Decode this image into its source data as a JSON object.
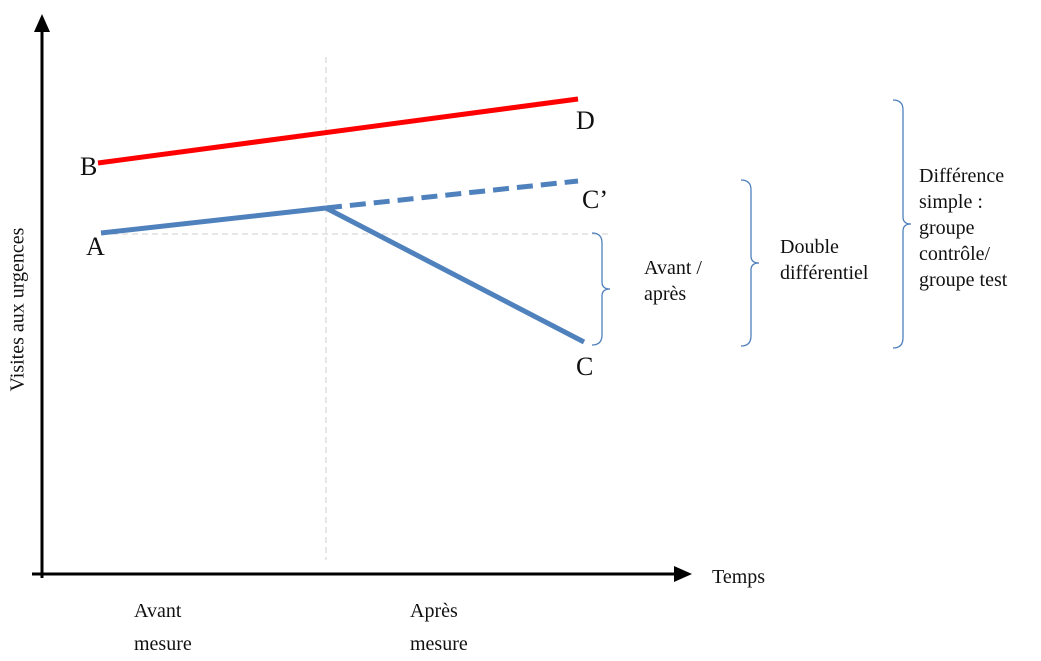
{
  "axes": {
    "y_label": "Visites aux urgences",
    "x_label": "Temps"
  },
  "periods": {
    "before_line1": "Avant",
    "before_line2": "mesure",
    "after_line1": "Après",
    "after_line2": "mesure"
  },
  "points": {
    "a": "A",
    "b": "B",
    "c": "C",
    "c_prime": "C’",
    "d": "D"
  },
  "brackets": {
    "avant_apres_line1": "Avant /",
    "avant_apres_line2": "après",
    "double_line1": "Double",
    "double_line2": "différentiel",
    "simple_line1": "Différence",
    "simple_line2": "simple :",
    "simple_line3": "groupe",
    "simple_line4": "contrôle/",
    "simple_line5": "groupe test"
  },
  "colors": {
    "control_line": "#ff0000",
    "test_line": "#4f81bd",
    "bracket": "#4f81bd",
    "guide": "#cccccc",
    "axis": "#000000"
  }
}
